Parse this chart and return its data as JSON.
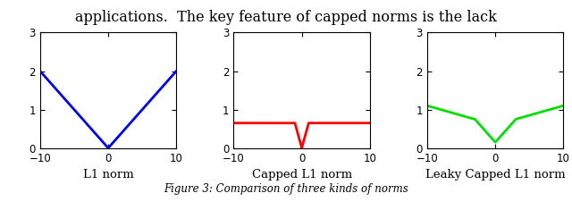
{
  "xlim": [
    -10,
    10
  ],
  "ylim": [
    0,
    3
  ],
  "xticks": [
    -10,
    0,
    10
  ],
  "yticks": [
    0,
    1,
    2,
    3
  ],
  "titles": [
    "L1 norm",
    "Capped L1 norm",
    "Leaky Capped L1 norm"
  ],
  "colors": [
    "blue",
    "red",
    "#00dd00"
  ],
  "top_text": "applications.  The key feature of capped norms is the lack",
  "caption": "Figure 3: Comparison of three kinds of norms",
  "linewidth": 2.0,
  "l1_scale": 0.2,
  "cap_threshold": 1.0,
  "cap_value": 0.65,
  "leaky_bp1": 3.0,
  "leaky_bp2": 10.0,
  "leaky_v0": 0.15,
  "leaky_v1": 0.75,
  "leaky_v2": 1.1
}
